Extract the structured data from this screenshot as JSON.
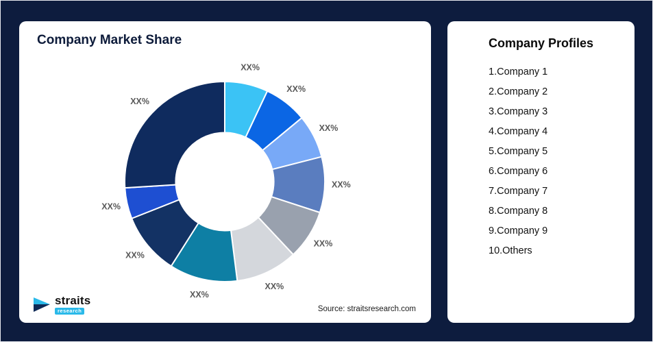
{
  "page": {
    "background_color": "#0d1c3e",
    "card_color": "#ffffff"
  },
  "chart_card": {
    "title": "Company Market Share",
    "source": "Source: straitsresearch.com",
    "logo": {
      "name": "straits",
      "sub": "research",
      "accent": "#2ab9e9",
      "dark": "#0d2a56"
    }
  },
  "profiles_card": {
    "title": "Company Profiles",
    "items": [
      "1.Company 1",
      "2.Company 2",
      "3.Company 3",
      "4.Company 4",
      "5.Company 5",
      "6.Company 6",
      "7.Company 7",
      "8.Company 8",
      "9.Company 9",
      "10.Others"
    ]
  },
  "chart_data": {
    "type": "pie",
    "variant": "donut",
    "title": "Company Market Share",
    "legend_position": "none",
    "start_angle_deg": 0,
    "direction": "clockwise",
    "inner_radius_ratio": 0.49,
    "segments": [
      {
        "label": "XX%",
        "value": 7,
        "color": "#3bc3f5",
        "name": "Company 1"
      },
      {
        "label": "XX%",
        "value": 7,
        "color": "#0b66e4",
        "name": "Company 2"
      },
      {
        "label": "XX%",
        "value": 7,
        "color": "#78a9f7",
        "name": "Company 3"
      },
      {
        "label": "XX%",
        "value": 9,
        "color": "#5a7dbf",
        "name": "Company 4"
      },
      {
        "label": "XX%",
        "value": 8,
        "color": "#99a1ae",
        "name": "Company 5"
      },
      {
        "label": "XX%",
        "value": 10,
        "color": "#d4d7dc",
        "name": "Company 6"
      },
      {
        "label": "XX%",
        "value": 11,
        "color": "#0e7fa4",
        "name": "Company 7"
      },
      {
        "label": "XX%",
        "value": 10,
        "color": "#133264",
        "name": "Company 8"
      },
      {
        "label": "XX%",
        "value": 5,
        "color": "#1e4fd2",
        "name": "Company 9"
      },
      {
        "label": "XX%",
        "value": 26,
        "color": "#0f2b5e",
        "name": "Others"
      }
    ]
  }
}
